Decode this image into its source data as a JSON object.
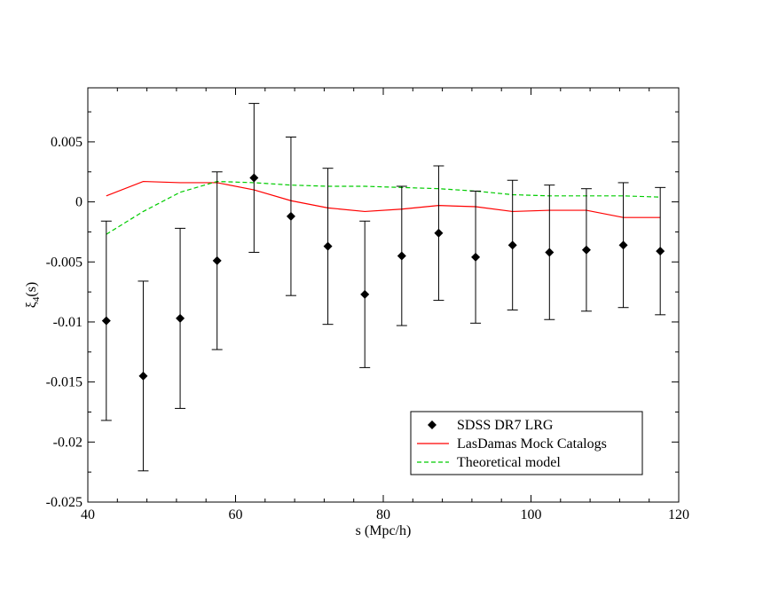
{
  "chart_data": {
    "type": "scatter",
    "title": "",
    "xlabel": "s (Mpc/h)",
    "ylabel_main": "ξ",
    "ylabel_sub": "4",
    "ylabel_tail": "(s)",
    "xlim": [
      40,
      120
    ],
    "ylim": [
      -0.025,
      0.0095
    ],
    "xticks": [
      40,
      60,
      80,
      100,
      120
    ],
    "xtick_labels": [
      "40",
      "60",
      "80",
      "100",
      "120"
    ],
    "yticks": [
      -0.025,
      -0.02,
      -0.015,
      -0.01,
      -0.005,
      0,
      0.005
    ],
    "ytick_labels": [
      "-0.025",
      "-0.02",
      "-0.015",
      "-0.01",
      "-0.005",
      "0",
      "0.005"
    ],
    "grid": false,
    "legend_position": "bottom-right",
    "series": [
      {
        "name": "SDSS DR7 LRG",
        "kind": "points-with-errorbars",
        "color": "#000000",
        "x": [
          42.5,
          47.5,
          52.5,
          57.5,
          62.5,
          67.5,
          72.5,
          77.5,
          82.5,
          87.5,
          92.5,
          97.5,
          102.5,
          107.5,
          112.5,
          117.5
        ],
        "y": [
          -0.0099,
          -0.0145,
          -0.0097,
          -0.0049,
          0.002,
          -0.0012,
          -0.0037,
          -0.0077,
          -0.0045,
          -0.0026,
          -0.0046,
          -0.0036,
          -0.0042,
          -0.004,
          -0.0036,
          -0.0041
        ],
        "err": [
          0.0083,
          0.0079,
          0.0075,
          0.0074,
          0.0062,
          0.0066,
          0.0065,
          0.0061,
          0.0058,
          0.0056,
          0.0055,
          0.0054,
          0.0056,
          0.0051,
          0.0052,
          0.0053
        ]
      },
      {
        "name": "LasDamas Mock Catalogs",
        "kind": "line",
        "color": "#ff0000",
        "x": [
          42.5,
          47.5,
          52.5,
          57.5,
          62.5,
          67.5,
          72.5,
          77.5,
          82.5,
          87.5,
          92.5,
          97.5,
          102.5,
          107.5,
          112.5,
          117.5
        ],
        "y": [
          0.0005,
          0.0017,
          0.0016,
          0.0016,
          0.001,
          0.0001,
          -0.0005,
          -0.0008,
          -0.0006,
          -0.0003,
          -0.0004,
          -0.0008,
          -0.0007,
          -0.0007,
          -0.0013,
          -0.0013
        ]
      },
      {
        "name": "Theoretical model",
        "kind": "dashed-line",
        "color": "#00cc00",
        "x": [
          42.5,
          47.5,
          52.5,
          57.5,
          62.5,
          67.5,
          72.5,
          77.5,
          82.5,
          87.5,
          92.5,
          97.5,
          102.5,
          107.5,
          112.5,
          117.5
        ],
        "y": [
          -0.0027,
          -0.0008,
          0.0008,
          0.0017,
          0.0016,
          0.0014,
          0.0013,
          0.0013,
          0.0012,
          0.0011,
          0.0009,
          0.0006,
          0.0005,
          0.0005,
          0.0005,
          0.0004
        ]
      }
    ]
  }
}
